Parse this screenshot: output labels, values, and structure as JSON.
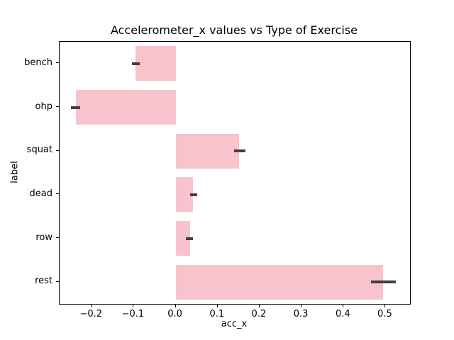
{
  "chart_data": {
    "type": "bar",
    "orientation": "horizontal",
    "title": "Accelerometer_x values vs Type of Exercise",
    "xlabel": "acc_x",
    "ylabel": "label",
    "categories": [
      "bench",
      "ohp",
      "squat",
      "dead",
      "row",
      "rest"
    ],
    "values": [
      -0.095,
      -0.238,
      0.151,
      0.042,
      0.034,
      0.495
    ],
    "error_intervals": [
      [
        -0.104,
        -0.086
      ],
      [
        -0.249,
        -0.228
      ],
      [
        0.14,
        0.166
      ],
      [
        0.035,
        0.052
      ],
      [
        0.025,
        0.041
      ],
      [
        0.465,
        0.525
      ]
    ],
    "xlim": [
      -0.2765,
      0.5584
    ],
    "xticks": [
      -0.2,
      -0.1,
      0.0,
      0.1,
      0.2,
      0.3,
      0.4,
      0.5
    ],
    "xtick_labels": [
      "−0.2",
      "−0.1",
      "0.0",
      "0.1",
      "0.2",
      "0.3",
      "0.4",
      "0.5"
    ],
    "bar_color": "#f8c3cd",
    "error_color": "#404040",
    "grid": false,
    "legend": false,
    "bar_width_frac": 0.8
  }
}
